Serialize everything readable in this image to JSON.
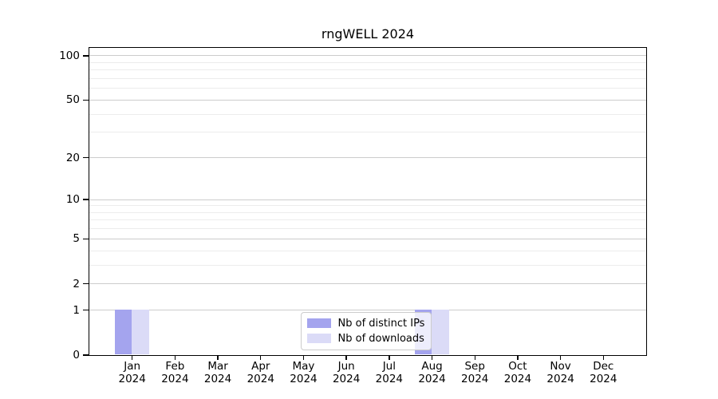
{
  "title": "rngWELL 2024",
  "colors": {
    "distinct_ips_bar": "#a4a4ee",
    "downloads_bar": "#dbdbf7",
    "grid_major": "#cccccc",
    "grid_minor": "#ececec",
    "axis": "#000000",
    "legend_border": "#cccccc"
  },
  "legend": {
    "items": [
      {
        "label": "Nb of distinct IPs"
      },
      {
        "label": "Nb of downloads"
      }
    ]
  },
  "chart_data": {
    "type": "bar",
    "title": "rngWELL 2024",
    "categories": [
      "Jan 2024",
      "Feb 2024",
      "Mar 2024",
      "Apr 2024",
      "May 2024",
      "Jun 2024",
      "Jul 2024",
      "Aug 2024",
      "Sep 2024",
      "Oct 2024",
      "Nov 2024",
      "Dec 2024"
    ],
    "series": [
      {
        "name": "Nb of distinct IPs",
        "color": "#a4a4ee",
        "values": [
          1,
          0,
          0,
          0,
          0,
          0,
          0,
          1,
          0,
          0,
          0,
          0
        ]
      },
      {
        "name": "Nb of downloads",
        "color": "#dbdbf7",
        "values": [
          1,
          0,
          0,
          0,
          0,
          0,
          0,
          1,
          0,
          0,
          0,
          0
        ]
      }
    ],
    "xlabel": "",
    "ylabel": "",
    "y_axis": {
      "scale": "log1p",
      "major_ticks": [
        0,
        1,
        2,
        5,
        10,
        20,
        50,
        100
      ],
      "minor_ticks": [
        3,
        4,
        6,
        7,
        8,
        9,
        30,
        40,
        60,
        70,
        80,
        90
      ],
      "ylim": [
        0,
        113
      ]
    },
    "grid": "horizontal",
    "legend_position": "lower-center-inside"
  }
}
